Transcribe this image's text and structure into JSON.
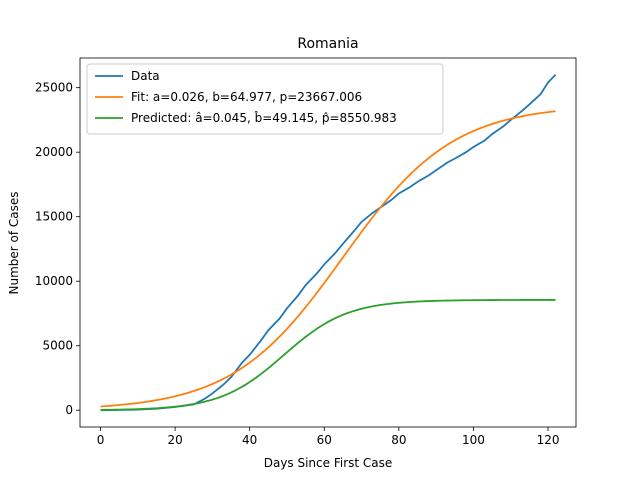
{
  "chart_data": {
    "type": "line",
    "title": "Romania",
    "xlabel": "Days Since First Case",
    "ylabel": "Number of Cases",
    "xlim": [
      -5.5,
      127.5
    ],
    "ylim": [
      -1300,
      27300
    ],
    "xticks": [
      0,
      20,
      40,
      60,
      80,
      100,
      120
    ],
    "yticks": [
      0,
      5000,
      10000,
      15000,
      20000,
      25000
    ],
    "grid": false,
    "legend_position": "top-left",
    "series": [
      {
        "name": "Data",
        "color": "#1f77b4",
        "x": [
          0,
          5,
          10,
          15,
          20,
          25,
          28,
          30,
          33,
          35,
          38,
          40,
          43,
          45,
          48,
          50,
          53,
          55,
          58,
          60,
          63,
          65,
          68,
          70,
          73,
          75,
          78,
          80,
          83,
          85,
          88,
          90,
          93,
          95,
          98,
          100,
          103,
          105,
          108,
          110,
          113,
          115,
          118,
          120,
          122
        ],
        "values": [
          0,
          20,
          50,
          120,
          250,
          450,
          900,
          1300,
          2000,
          2550,
          3700,
          4300,
          5400,
          6200,
          7100,
          7900,
          8900,
          9700,
          10600,
          11300,
          12200,
          12900,
          13900,
          14600,
          15300,
          15700,
          16300,
          16800,
          17300,
          17700,
          18200,
          18600,
          19200,
          19500,
          20000,
          20400,
          20900,
          21400,
          22000,
          22500,
          23200,
          23700,
          24500,
          25400,
          26000
        ]
      },
      {
        "name": "Fit: a=0.026, b=64.977, p=23667.006",
        "color": "#ff7f0e",
        "a": 0.026,
        "b": 64.977,
        "p": 23667.006
      },
      {
        "name": "Predicted: â=0.045, b̂=49.145, p̂=8550.983",
        "color": "#2ca02c",
        "a": 0.045,
        "b": 49.145,
        "p": 8550.983
      }
    ]
  }
}
